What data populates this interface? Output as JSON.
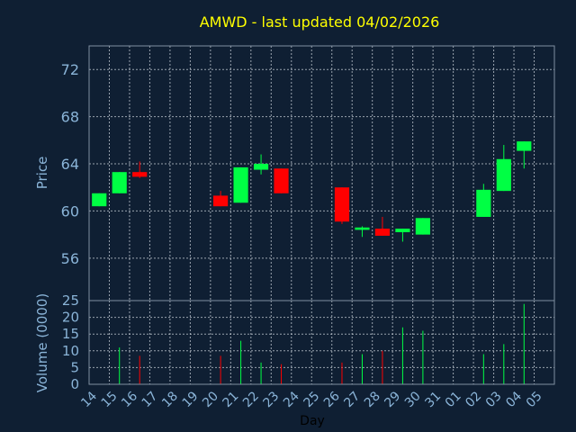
{
  "colors": {
    "background": "#0f1f33",
    "frame": "#7f8fa0",
    "grid": "#c8d0d8",
    "title": "#ffff00",
    "axis_text": "#8ab4d8",
    "xlabel": "#000000",
    "up": "#00ff44",
    "down": "#ff0000"
  },
  "chart_data": {
    "type": "candlestick",
    "title": "AMWD - last updated 04/02/2026",
    "xlabel": "Day",
    "grid": true,
    "x_ticks": [
      "14",
      "15",
      "16",
      "17",
      "18",
      "19",
      "20",
      "21",
      "22",
      "23",
      "24",
      "25",
      "26",
      "27",
      "28",
      "29",
      "30",
      "31",
      "01",
      "02",
      "03",
      "04",
      "05"
    ],
    "price_panel": {
      "ylabel": "Price",
      "ylim": [
        52.4,
        74.0
      ],
      "yticks": [
        56,
        60,
        64,
        68,
        72
      ],
      "candles": [
        {
          "day": "14",
          "open": 60.4,
          "high": 61.5,
          "low": 60.4,
          "close": 61.5
        },
        {
          "day": "15",
          "open": 61.5,
          "high": 63.3,
          "low": 61.5,
          "close": 63.3
        },
        {
          "day": "16",
          "open": 63.3,
          "high": 64.2,
          "low": 62.8,
          "close": 62.9
        },
        {
          "day": "20",
          "open": 61.3,
          "high": 61.7,
          "low": 60.4,
          "close": 60.4
        },
        {
          "day": "21",
          "open": 60.7,
          "high": 63.7,
          "low": 60.7,
          "close": 63.7
        },
        {
          "day": "22",
          "open": 63.5,
          "high": 64.8,
          "low": 63.1,
          "close": 64.0
        },
        {
          "day": "23",
          "open": 63.6,
          "high": 63.6,
          "low": 61.5,
          "close": 61.5
        },
        {
          "day": "26",
          "open": 62.0,
          "high": 62.0,
          "low": 58.9,
          "close": 59.1
        },
        {
          "day": "27",
          "open": 58.4,
          "high": 58.7,
          "low": 57.8,
          "close": 58.6
        },
        {
          "day": "28",
          "open": 58.5,
          "high": 59.5,
          "low": 57.9,
          "close": 57.9
        },
        {
          "day": "29",
          "open": 58.2,
          "high": 58.5,
          "low": 57.4,
          "close": 58.5
        },
        {
          "day": "30",
          "open": 58.0,
          "high": 59.4,
          "low": 58.0,
          "close": 59.4
        },
        {
          "day": "02",
          "open": 59.5,
          "high": 62.3,
          "low": 59.5,
          "close": 61.8
        },
        {
          "day": "03",
          "open": 61.7,
          "high": 65.6,
          "low": 61.7,
          "close": 64.4
        },
        {
          "day": "04",
          "open": 65.1,
          "high": 65.9,
          "low": 63.6,
          "close": 65.9
        }
      ]
    },
    "volume_panel": {
      "ylabel": "Volume (0000)",
      "ylim": [
        0,
        25
      ],
      "yticks": [
        0,
        5,
        10,
        15,
        20,
        25
      ],
      "bars": [
        {
          "day": "15",
          "value": 11,
          "direction": "up"
        },
        {
          "day": "16",
          "value": 8.5,
          "direction": "down"
        },
        {
          "day": "20",
          "value": 8.5,
          "direction": "down"
        },
        {
          "day": "21",
          "value": 13,
          "direction": "up"
        },
        {
          "day": "22",
          "value": 6.5,
          "direction": "up"
        },
        {
          "day": "23",
          "value": 6,
          "direction": "down"
        },
        {
          "day": "26",
          "value": 6.5,
          "direction": "down"
        },
        {
          "day": "27",
          "value": 9,
          "direction": "up"
        },
        {
          "day": "28",
          "value": 10,
          "direction": "down"
        },
        {
          "day": "29",
          "value": 17,
          "direction": "up"
        },
        {
          "day": "30",
          "value": 16,
          "direction": "up"
        },
        {
          "day": "02",
          "value": 9,
          "direction": "up"
        },
        {
          "day": "03",
          "value": 12,
          "direction": "up"
        },
        {
          "day": "04",
          "value": 24,
          "direction": "up"
        }
      ]
    }
  }
}
